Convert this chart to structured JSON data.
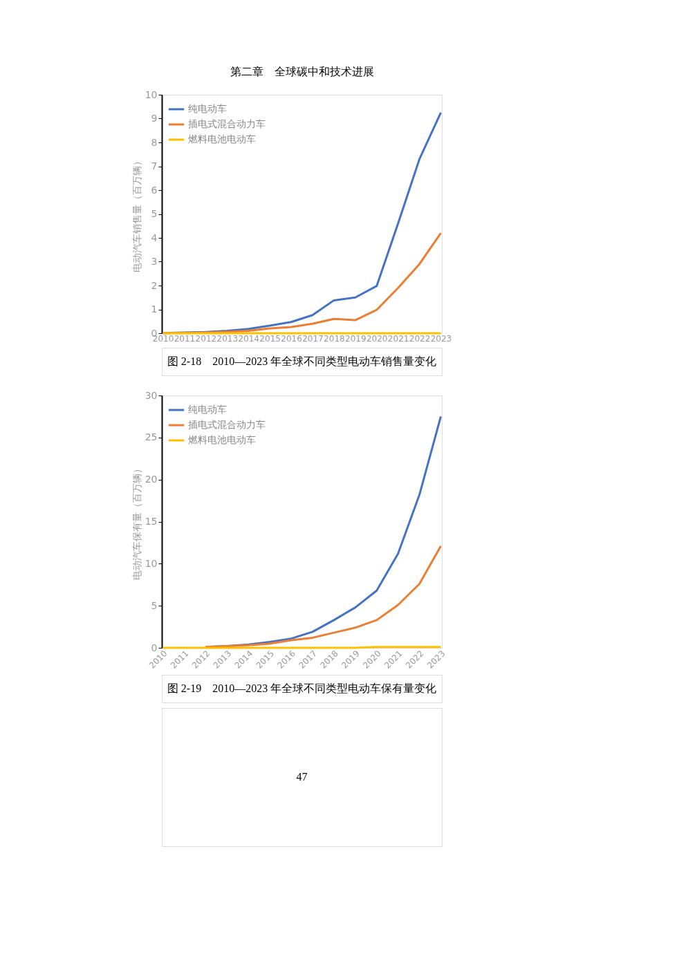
{
  "chart_data": [
    {
      "type": "line",
      "title": "第二章　全球碳中和技术进展",
      "ylabel": "电动汽车销售量（百万辆）",
      "categories": [
        "2010",
        "2011",
        "2012",
        "2013",
        "2014",
        "2015",
        "2016",
        "2017",
        "2018",
        "2019",
        "2020",
        "2021",
        "2022",
        "2023"
      ],
      "series": [
        {
          "name": "纯电动车",
          "color": "#4472c4",
          "values": [
            0.01,
            0.03,
            0.05,
            0.1,
            0.18,
            0.32,
            0.47,
            0.76,
            1.38,
            1.5,
            1.98,
            4.6,
            7.3,
            9.25
          ]
        },
        {
          "name": "插电式混合动力车",
          "color": "#ed7d31",
          "values": [
            0.0,
            0.01,
            0.03,
            0.06,
            0.1,
            0.2,
            0.26,
            0.4,
            0.6,
            0.55,
            0.98,
            1.9,
            2.9,
            4.2
          ]
        },
        {
          "name": "燃料电池电动车",
          "color": "#ffc000",
          "values": [
            0,
            0,
            0,
            0,
            0,
            0,
            0,
            0,
            0,
            0,
            0,
            0,
            0,
            0
          ]
        }
      ],
      "ylim": [
        0,
        10
      ],
      "yticks": [
        0,
        1,
        2,
        3,
        4,
        5,
        6,
        7,
        8,
        9,
        10
      ],
      "grid": false,
      "legend": "top left",
      "line_style": "solid",
      "marker": "none",
      "annotations": [
        "图 2-18　2010—2023 年全球不同类型电动车销售量变化"
      ]
    },
    {
      "type": "line",
      "ylabel": "电动汽车保有量（百万辆）",
      "categories": [
        "2010",
        "2011",
        "2012",
        "2013",
        "2014",
        "2015",
        "2016",
        "2017",
        "2018",
        "2019",
        "2020",
        "2021",
        "2022",
        "2023"
      ],
      "series": [
        {
          "name": "纯电动车",
          "color": "#4472c4",
          "values": [
            null,
            null,
            0.1,
            0.2,
            0.4,
            0.7,
            1.1,
            1.9,
            3.3,
            4.8,
            6.8,
            11.2,
            18.2,
            27.5
          ]
        },
        {
          "name": "插电式混合动力车",
          "color": "#ed7d31",
          "values": [
            null,
            null,
            0.1,
            0.2,
            0.3,
            0.5,
            0.9,
            1.2,
            1.8,
            2.4,
            3.3,
            5.1,
            7.6,
            12.1
          ]
        },
        {
          "name": "燃料电池电动车",
          "color": "#ffc000",
          "values": [
            0,
            0,
            0,
            0,
            0,
            0,
            0,
            0,
            0,
            0,
            0.1,
            0.1,
            0.1,
            0.1
          ]
        }
      ],
      "ylim": [
        0,
        30
      ],
      "yticks": [
        0,
        5,
        10,
        15,
        20,
        25,
        30
      ],
      "grid": false,
      "legend": "top left",
      "line_style": "solid",
      "marker": "none",
      "annotations": [
        "图 2-19　2010—2023 年全球不同类型电动车保有量变化",
        "47"
      ]
    }
  ]
}
